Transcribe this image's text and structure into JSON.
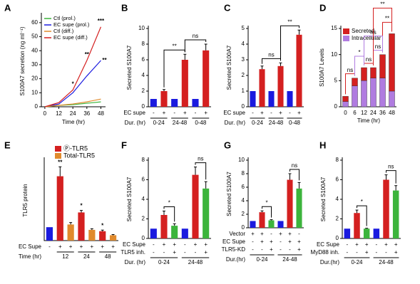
{
  "chart_data": [
    {
      "type": "line",
      "panel_label": "A",
      "xlabel": "Time (hr)",
      "ylabel": "S100A7 secretion (ng ml⁻¹)",
      "x": [
        0,
        12,
        24,
        36,
        48
      ],
      "xlim": [
        -3,
        52
      ],
      "xticks": [
        0,
        12,
        24,
        36,
        48
      ],
      "ylim": [
        0,
        65
      ],
      "yticks": [
        0,
        10,
        20,
        30,
        40,
        50,
        60
      ],
      "series": [
        {
          "name": "Ctl (prol.)",
          "color": "#3cb43c",
          "values": [
            0,
            1,
            1.5,
            2.5,
            3.5
          ]
        },
        {
          "name": "EC supe (prol.)",
          "color": "#1a1adf",
          "values": [
            0,
            2,
            10,
            22,
            33
          ]
        },
        {
          "name": "Ctl (diff.)",
          "color": "#e08a2c",
          "values": [
            0,
            1,
            2,
            3.5,
            5.5
          ]
        },
        {
          "name": "EC supe (diff.)",
          "color": "#d42020",
          "values": [
            0,
            3,
            12,
            33,
            57
          ]
        }
      ],
      "annotations": [
        "*",
        "**",
        "***",
        "**"
      ]
    },
    {
      "type": "bar",
      "panel_label": "B",
      "ylabel": "Secreted S100A7",
      "ylim": [
        0,
        10
      ],
      "yticks": [
        0,
        2,
        4,
        6,
        8,
        10
      ],
      "values": [
        1,
        2,
        1,
        6,
        1,
        7.2
      ],
      "errors": [
        0,
        0.2,
        0,
        0.7,
        0,
        0.8
      ],
      "colors": [
        "#1a1adf",
        "#d42020",
        "#1a1adf",
        "#d42020",
        "#1a1adf",
        "#d42020"
      ],
      "rows": [
        {
          "label": "EC supe",
          "cells": [
            "-",
            "+",
            "-",
            "+",
            "-",
            "+"
          ]
        }
      ],
      "groups": {
        "label": "Dur. (hr)",
        "labels": [
          "0-24",
          "24-48",
          "0-48"
        ]
      },
      "annotations": [
        "**",
        "ns"
      ]
    },
    {
      "type": "bar",
      "panel_label": "C",
      "ylabel": "Secreted S100A7",
      "ylim": [
        0,
        5
      ],
      "yticks": [
        0,
        1,
        2,
        3,
        4,
        5
      ],
      "values": [
        1,
        2.4,
        1,
        2.6,
        1,
        4.6
      ],
      "errors": [
        0,
        0.2,
        0,
        0.2,
        0,
        0.3
      ],
      "colors": [
        "#1a1adf",
        "#d42020",
        "#1a1adf",
        "#d42020",
        "#1a1adf",
        "#d42020"
      ],
      "rows": [
        {
          "label": "EC supe",
          "cells": [
            "-",
            "+",
            "-",
            "+",
            "-",
            "+"
          ]
        }
      ],
      "groups": {
        "label": "Dur. (hr)",
        "labels": [
          "0-24",
          "24-48",
          "0-48"
        ]
      },
      "annotations": [
        "ns",
        "**"
      ]
    },
    {
      "type": "stacked_bar",
      "panel_label": "D",
      "ylabel": "S100A7 Levels",
      "xlabel": "Time (hr)",
      "categories": [
        "0",
        "6",
        "12",
        "24",
        "36",
        "48"
      ],
      "ylim": [
        0,
        15
      ],
      "yticks": [
        0,
        5,
        10,
        15
      ],
      "series": [
        {
          "name": "Intracellular",
          "color": "#b07ce0",
          "values": [
            1,
            4,
            5,
            5.5,
            5.5,
            3
          ]
        },
        {
          "name": "Secreted",
          "color": "#d42020",
          "values": [
            1,
            1.5,
            2.5,
            2,
            4.5,
            11
          ]
        }
      ],
      "annotations": [
        "ns",
        "*",
        "ns",
        "ns",
        "**",
        "ns",
        "**"
      ]
    },
    {
      "type": "bar",
      "panel_label": "E",
      "ylabel": "TLR5 protein",
      "ylim": [
        0,
        6
      ],
      "values": [
        1,
        4.8,
        1.2,
        2.1,
        0.8,
        0.7,
        0.4
      ],
      "errors": [
        0,
        0.7,
        0.15,
        0.15,
        0.08,
        0.08,
        0.05
      ],
      "colors": [
        "#1a1adf",
        "#d42020",
        "#e08a2c",
        "#d42020",
        "#e08a2c",
        "#d42020",
        "#e08a2c"
      ],
      "legend": [
        {
          "name": "Ⓟ-TLR5",
          "color": "#d42020"
        },
        {
          "name": "Total-TLR5",
          "color": "#e08a2c"
        }
      ],
      "rows": [
        {
          "label": "EC Supe",
          "cells": [
            "-",
            "+",
            "+",
            "+",
            "+",
            "+",
            "+"
          ]
        }
      ],
      "groups": {
        "label": "Time (hr)",
        "labels": [
          "12",
          "24",
          "48"
        ]
      },
      "annotations": [
        "**",
        "*",
        "*"
      ]
    },
    {
      "type": "bar",
      "panel_label": "F",
      "ylabel": "Secreted S100A7",
      "ylim": [
        0,
        8
      ],
      "yticks": [
        0,
        2,
        4,
        6,
        8
      ],
      "values": [
        1,
        2.4,
        1.3,
        1,
        6.5,
        5.1
      ],
      "errors": [
        0,
        0.4,
        0.2,
        0,
        0.8,
        0.7
      ],
      "colors": [
        "#1a1adf",
        "#d42020",
        "#3cb43c",
        "#1a1adf",
        "#d42020",
        "#3cb43c"
      ],
      "rows": [
        {
          "label": "EC Supe",
          "cells": [
            "-",
            "+",
            "+",
            "-",
            "+",
            "+"
          ]
        },
        {
          "label": "TLR5 inh.",
          "cells": [
            "-",
            "-",
            "+",
            "-",
            "-",
            "+"
          ]
        }
      ],
      "groups": {
        "label": "Dur. (hr)",
        "labels": [
          "0-24",
          "24-48"
        ]
      },
      "annotations": [
        "*",
        "ns"
      ]
    },
    {
      "type": "bar",
      "panel_label": "G",
      "ylabel": "Secreted S100A7",
      "ylim": [
        0,
        10
      ],
      "yticks": [
        0,
        2,
        4,
        6,
        8,
        10
      ],
      "values": [
        1,
        2.3,
        1.1,
        1,
        7.1,
        5.8
      ],
      "errors": [
        0,
        0.2,
        0.1,
        0,
        0.9,
        0.9
      ],
      "colors": [
        "#1a1adf",
        "#d42020",
        "#3cb43c",
        "#1a1adf",
        "#d42020",
        "#3cb43c"
      ],
      "rows": [
        {
          "label": "Vector",
          "cells": [
            "+",
            "+",
            "-",
            "+",
            "+",
            "-"
          ]
        },
        {
          "label": "EC Supe",
          "cells": [
            "-",
            "+",
            "+",
            "-",
            "+",
            "+"
          ]
        },
        {
          "label": "TLR5-KD",
          "cells": [
            "-",
            "-",
            "+",
            "-",
            "-",
            "+"
          ]
        }
      ],
      "groups": {
        "label": "Dur.(hr)",
        "labels": [
          "0-24",
          "24-48"
        ]
      },
      "annotations": [
        "*",
        "ns"
      ]
    },
    {
      "type": "bar",
      "panel_label": "H",
      "ylabel": "Secreted S100A7",
      "ylim": [
        0,
        8
      ],
      "yticks": [
        0,
        2,
        4,
        6,
        8
      ],
      "values": [
        1,
        2.6,
        1,
        1,
        6,
        4.9
      ],
      "errors": [
        0,
        0.3,
        0.05,
        0,
        0.5,
        0.5
      ],
      "colors": [
        "#1a1adf",
        "#d42020",
        "#3cb43c",
        "#1a1adf",
        "#d42020",
        "#3cb43c"
      ],
      "rows": [
        {
          "label": "EC Supe",
          "cells": [
            "-",
            "+",
            "+",
            "-",
            "+",
            "+"
          ]
        },
        {
          "label": "MyD88 inh.",
          "cells": [
            "-",
            "-",
            "+",
            "-",
            "-",
            "+"
          ]
        }
      ],
      "groups": {
        "label": "Dur.(hr)",
        "labels": [
          "0-24",
          "24-48"
        ]
      },
      "annotations": [
        "*",
        "ns"
      ]
    }
  ]
}
